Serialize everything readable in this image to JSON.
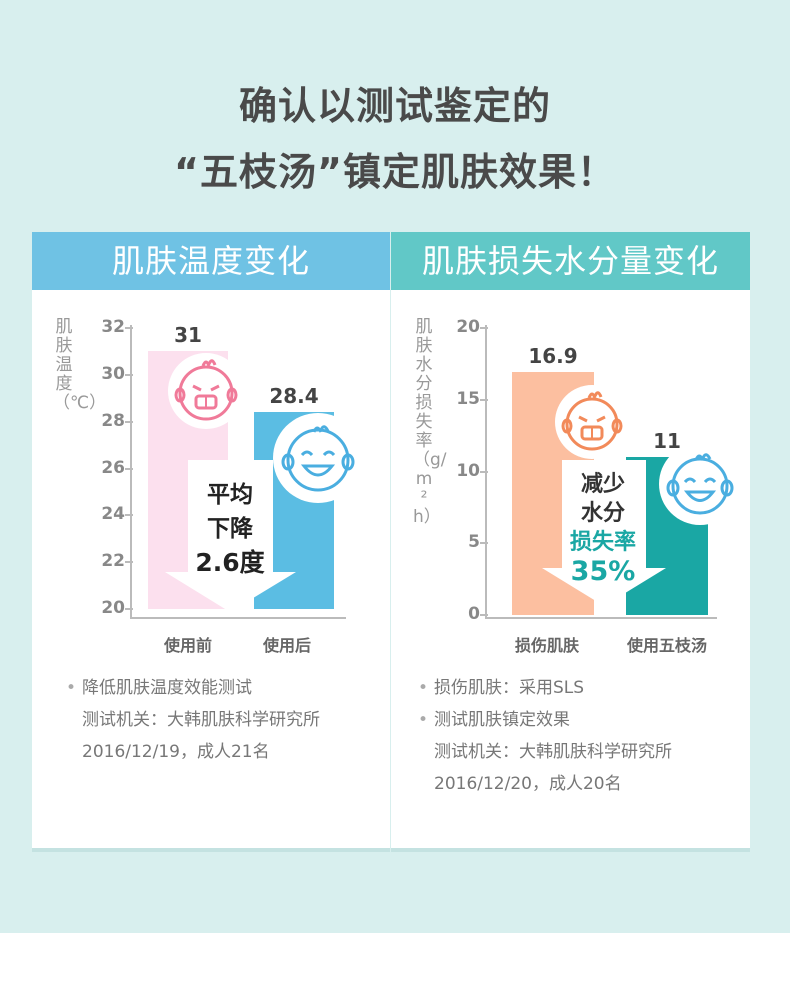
{
  "headline": {
    "line1": "确认以测试鉴定的",
    "line2": "“五枝汤”镇定肌肤效果！"
  },
  "colors": {
    "background": "#d8efee",
    "left_header": "#6fc2e4",
    "right_header": "#61c8c7",
    "pink_bar": "#fce0ee",
    "blue_bar": "#5bbde3",
    "peach_bar": "#fcbfa0",
    "teal_bar": "#1aa7a4"
  },
  "chart_data": [
    {
      "type": "bar",
      "title": "肌肤温度变化",
      "ylabel": "肌肤温度（℃）",
      "ylim": [
        20,
        32
      ],
      "yticks": [
        "32",
        "30",
        "28",
        "26",
        "24",
        "22",
        "20"
      ],
      "categories": [
        "使用前",
        "使用后"
      ],
      "values": [
        31,
        28.4
      ],
      "value_labels": [
        "31",
        "28.4"
      ],
      "annotation": [
        "平均",
        "下降",
        "2.6度"
      ]
    },
    {
      "type": "bar",
      "title": "肌肤损失水分量变化",
      "ylabel": "肌肤水分损失率（g/m²h）",
      "ylim": [
        0,
        20
      ],
      "yticks": [
        "20",
        "15",
        "10",
        "5",
        "0"
      ],
      "categories": [
        "损伤肌肤",
        "使用五枝汤"
      ],
      "values": [
        16.9,
        11
      ],
      "value_labels": [
        "16.9",
        "11"
      ],
      "annotation": [
        "减少",
        "水分",
        "损失率",
        "35%"
      ]
    }
  ],
  "notes_left": {
    "line1": "降低肌肤温度效能测试",
    "line2": "测试机关：大韩肌肤科学研究所",
    "line3": "2016/12/19，成人21名"
  },
  "notes_right": {
    "line1": "损伤肌肤：采用SLS",
    "line2": "测试肌肤镇定效果",
    "line3": "测试机关：大韩肌肤科学研究所",
    "line4": "2016/12/20，成人20名"
  }
}
